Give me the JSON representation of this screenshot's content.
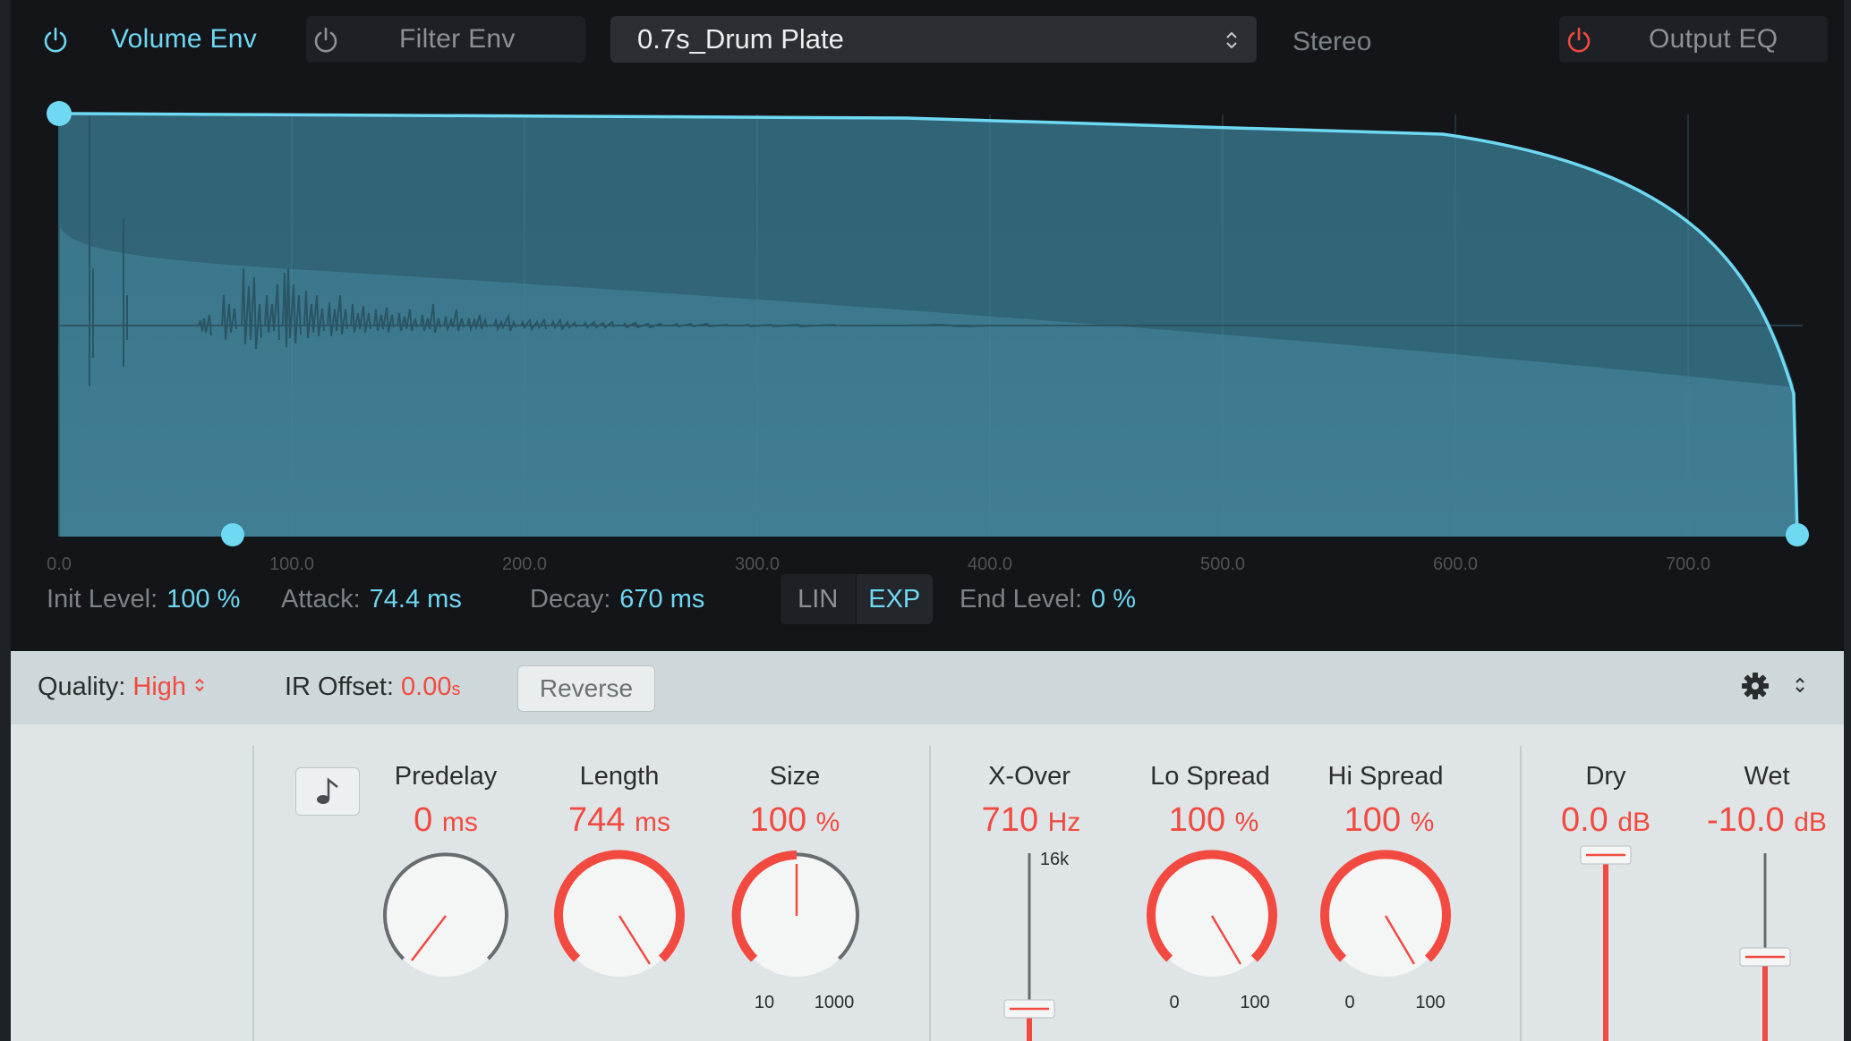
{
  "colors": {
    "accent": "#6fd8f2",
    "value_red": "#f24a40",
    "env_fill": "#3a7388"
  },
  "header": {
    "volume_env_label": "Volume Env",
    "filter_env_label": "Filter Env",
    "ir_name": "0.7s_Drum Plate",
    "stereo_label": "Stereo",
    "output_eq_label": "Output EQ"
  },
  "envelope": {
    "ticks": [
      "0.0",
      "100.0",
      "200.0",
      "300.0",
      "400.0",
      "500.0",
      "600.0",
      "700.0"
    ],
    "init_level": {
      "label": "Init Level:",
      "value": "100 %"
    },
    "attack": {
      "label": "Attack:",
      "value": "74.4 ms"
    },
    "decay": {
      "label": "Decay:",
      "value": "670 ms"
    },
    "curve_lin": "LIN",
    "curve_exp": "EXP",
    "end_level": {
      "label": "End Level:",
      "value": "0 %"
    }
  },
  "bar": {
    "quality_label": "Quality:",
    "quality_value": "High",
    "ir_offset_label": "IR Offset:",
    "ir_offset_value": "0.00",
    "ir_offset_unit": "s",
    "reverse_label": "Reverse"
  },
  "knobs": {
    "predelay": {
      "label": "Predelay",
      "value": "0",
      "unit": "ms"
    },
    "length": {
      "label": "Length",
      "value": "744",
      "unit": "ms"
    },
    "size": {
      "label": "Size",
      "value": "100",
      "unit": "%",
      "min": "10",
      "max": "1000"
    },
    "xover": {
      "label": "X-Over",
      "value": "710",
      "unit": "Hz",
      "top": "16k"
    },
    "lo_spread": {
      "label": "Lo Spread",
      "value": "100",
      "unit": "%",
      "min": "0",
      "max": "100"
    },
    "hi_spread": {
      "label": "Hi Spread",
      "value": "100",
      "unit": "%",
      "min": "0",
      "max": "100"
    },
    "dry": {
      "label": "Dry",
      "value": "0.0",
      "unit": "dB"
    },
    "wet": {
      "label": "Wet",
      "value": "-10.0",
      "unit": "dB"
    }
  }
}
